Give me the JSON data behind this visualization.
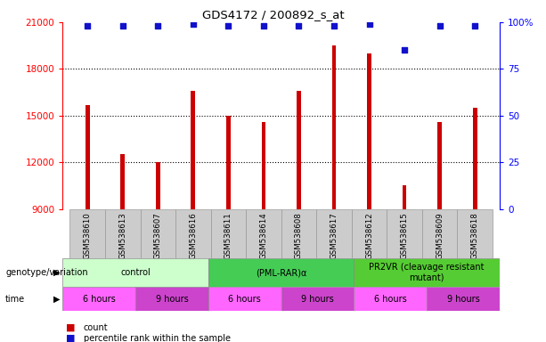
{
  "title": "GDS4172 / 200892_s_at",
  "samples": [
    "GSM538610",
    "GSM538613",
    "GSM538607",
    "GSM538616",
    "GSM538611",
    "GSM538614",
    "GSM538608",
    "GSM538617",
    "GSM538612",
    "GSM538615",
    "GSM538609",
    "GSM538618"
  ],
  "counts": [
    15700,
    12500,
    12000,
    16600,
    15000,
    14600,
    16600,
    19500,
    19000,
    10500,
    14600,
    15500
  ],
  "percentile_ranks": [
    98,
    98,
    98,
    99,
    98,
    98,
    98,
    98,
    99,
    85,
    98,
    98
  ],
  "ylim_left": [
    9000,
    21000
  ],
  "ylim_right": [
    0,
    100
  ],
  "yticks_left": [
    9000,
    12000,
    15000,
    18000,
    21000
  ],
  "yticks_right": [
    0,
    25,
    50,
    75,
    100
  ],
  "bar_color": "#cc0000",
  "scatter_color": "#1111cc",
  "bg_color": "#ffffff",
  "tick_label_bg": "#cccccc",
  "genotype_groups": [
    {
      "label": "control",
      "start": 0,
      "end": 4,
      "color": "#ccffcc"
    },
    {
      "label": "(PML-RAR)α",
      "start": 4,
      "end": 8,
      "color": "#44cc55"
    },
    {
      "label": "PR2VR (cleavage resistant\nmutant)",
      "start": 8,
      "end": 12,
      "color": "#55cc33"
    }
  ],
  "time_groups": [
    {
      "label": "6 hours",
      "start": 0,
      "end": 2,
      "color": "#ff66ff"
    },
    {
      "label": "9 hours",
      "start": 2,
      "end": 4,
      "color": "#cc44cc"
    },
    {
      "label": "6 hours",
      "start": 4,
      "end": 6,
      "color": "#ff66ff"
    },
    {
      "label": "9 hours",
      "start": 6,
      "end": 8,
      "color": "#cc44cc"
    },
    {
      "label": "6 hours",
      "start": 8,
      "end": 10,
      "color": "#ff66ff"
    },
    {
      "label": "9 hours",
      "start": 10,
      "end": 12,
      "color": "#cc44cc"
    }
  ],
  "genotype_label": "genotype/variation",
  "time_label": "time",
  "legend_count": "count",
  "legend_percentile": "percentile rank within the sample"
}
